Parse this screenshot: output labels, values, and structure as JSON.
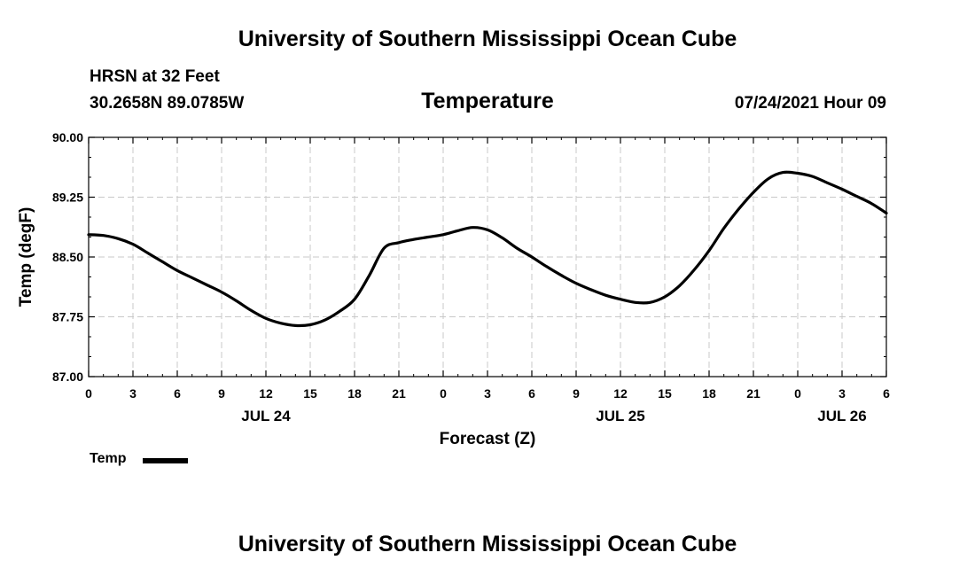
{
  "header": {
    "title_top": "University of Southern Mississippi Ocean Cube",
    "station": "HRSN at 32 Feet",
    "coords": "30.2658N  89.0785W",
    "variable": "Temperature",
    "timestamp": "07/24/2021 Hour 09"
  },
  "footer": {
    "title_bottom": "University of Southern Mississippi Ocean Cube"
  },
  "legend": {
    "label": "Temp"
  },
  "chart_data": {
    "type": "line",
    "xlabel": "Forecast (Z)",
    "ylabel": "Temp (degF)",
    "ylim": [
      87.0,
      90.0
    ],
    "xlim": [
      0,
      54
    ],
    "grid": true,
    "legend_placement": "bottom-left",
    "y_ticks": [
      "87.00",
      "87.75",
      "88.50",
      "89.25",
      "90.00"
    ],
    "x_ticks": [
      "0",
      "3",
      "6",
      "9",
      "12",
      "15",
      "18",
      "21",
      "0",
      "3",
      "6",
      "9",
      "12",
      "15",
      "18",
      "21",
      "0",
      "3",
      "6"
    ],
    "date_labels": [
      {
        "hours": 12,
        "label": "JUL 24"
      },
      {
        "hours": 36,
        "label": "JUL 25"
      },
      {
        "hours": 51,
        "label": "JUL 26"
      }
    ],
    "series": [
      {
        "name": "Temp",
        "color": "#000000",
        "x": [
          0,
          1,
          2,
          3,
          4,
          5,
          6,
          7,
          8,
          9,
          10,
          11,
          12,
          13,
          14,
          15,
          16,
          17,
          18,
          19,
          20,
          21,
          22,
          23,
          24,
          25,
          26,
          27,
          28,
          29,
          30,
          31,
          32,
          33,
          34,
          35,
          36,
          37,
          38,
          39,
          40,
          41,
          42,
          43,
          44,
          45,
          46,
          47,
          48,
          49,
          50,
          51,
          52,
          53,
          54
        ],
        "values": [
          88.78,
          88.77,
          88.73,
          88.66,
          88.55,
          88.44,
          88.33,
          88.24,
          88.15,
          88.06,
          87.95,
          87.83,
          87.73,
          87.67,
          87.64,
          87.65,
          87.71,
          87.82,
          87.97,
          88.27,
          88.61,
          88.68,
          88.72,
          88.75,
          88.78,
          88.83,
          88.87,
          88.84,
          88.74,
          88.61,
          88.5,
          88.38,
          88.27,
          88.17,
          88.09,
          88.02,
          87.97,
          87.93,
          87.93,
          88.0,
          88.14,
          88.34,
          88.58,
          88.86,
          89.1,
          89.31,
          89.48,
          89.56,
          89.55,
          89.51,
          89.43,
          89.35,
          89.26,
          89.17,
          89.05
        ]
      }
    ]
  }
}
